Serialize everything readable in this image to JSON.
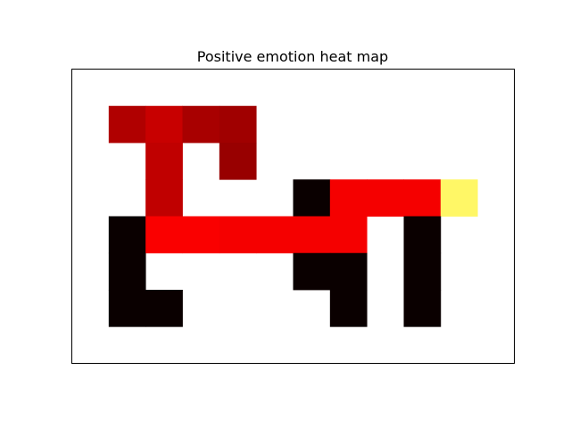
{
  "chart_data": {
    "type": "heatmap",
    "title": "Positive emotion heat map",
    "xlabel": "",
    "ylabel": "",
    "grid": false,
    "axes_ticks": false,
    "n_cols": 12,
    "n_rows": 8,
    "colormap": "hot",
    "cells": [
      {
        "row": 1,
        "col": 1,
        "color": "#b00000"
      },
      {
        "row": 1,
        "col": 2,
        "color": "#c80000"
      },
      {
        "row": 1,
        "col": 3,
        "color": "#a80000"
      },
      {
        "row": 1,
        "col": 4,
        "color": "#a00000"
      },
      {
        "row": 2,
        "col": 2,
        "color": "#c00000"
      },
      {
        "row": 2,
        "col": 4,
        "color": "#980000"
      },
      {
        "row": 3,
        "col": 2,
        "color": "#c00000"
      },
      {
        "row": 3,
        "col": 6,
        "color": "#0a0000"
      },
      {
        "row": 3,
        "col": 7,
        "color": "#f50000"
      },
      {
        "row": 3,
        "col": 8,
        "color": "#f50000"
      },
      {
        "row": 3,
        "col": 9,
        "color": "#f50000"
      },
      {
        "row": 3,
        "col": 10,
        "color": "#fff766"
      },
      {
        "row": 4,
        "col": 1,
        "color": "#0a0000"
      },
      {
        "row": 4,
        "col": 2,
        "color": "#fa0000"
      },
      {
        "row": 4,
        "col": 3,
        "color": "#fa0000"
      },
      {
        "row": 4,
        "col": 4,
        "color": "#f50000"
      },
      {
        "row": 4,
        "col": 5,
        "color": "#f50000"
      },
      {
        "row": 4,
        "col": 6,
        "color": "#f50000"
      },
      {
        "row": 4,
        "col": 7,
        "color": "#f50000"
      },
      {
        "row": 4,
        "col": 9,
        "color": "#0a0000"
      },
      {
        "row": 5,
        "col": 1,
        "color": "#0a0000"
      },
      {
        "row": 5,
        "col": 6,
        "color": "#0a0000"
      },
      {
        "row": 5,
        "col": 7,
        "color": "#0a0000"
      },
      {
        "row": 5,
        "col": 9,
        "color": "#0a0000"
      },
      {
        "row": 6,
        "col": 1,
        "color": "#0a0000"
      },
      {
        "row": 6,
        "col": 2,
        "color": "#0a0000"
      },
      {
        "row": 6,
        "col": 7,
        "color": "#0a0000"
      },
      {
        "row": 6,
        "col": 9,
        "color": "#0a0000"
      }
    ]
  }
}
